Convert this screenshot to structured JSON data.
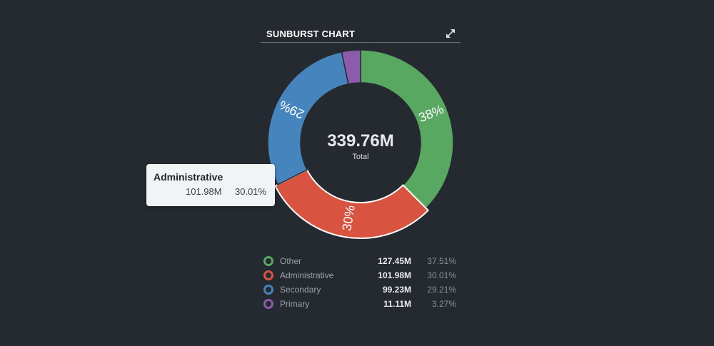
{
  "panel": {
    "title": "SUNBURST CHART",
    "expand_icon": "expand-arrows-icon"
  },
  "chart_data": {
    "type": "pie",
    "title": "SUNBURST CHART",
    "center_value": "339.76M",
    "center_label": "Total",
    "slices": [
      {
        "name": "Other",
        "value_label": "127.45M",
        "value": 127.45,
        "percent": 37.51,
        "percent_label": "37.51%",
        "slice_label": "38%",
        "color": "#58a862"
      },
      {
        "name": "Administrative",
        "value_label": "101.98M",
        "value": 101.98,
        "percent": 30.01,
        "percent_label": "30.01%",
        "slice_label": "30%",
        "color": "#d95440"
      },
      {
        "name": "Secondary",
        "value_label": "99.23M",
        "value": 99.23,
        "percent": 29.21,
        "percent_label": "29.21%",
        "slice_label": "29%",
        "color": "#4684bd"
      },
      {
        "name": "Primary",
        "value_label": "11.11M",
        "value": 11.11,
        "percent": 3.27,
        "percent_label": "3.27%",
        "slice_label": "",
        "color": "#8c5cab"
      }
    ]
  },
  "tooltip": {
    "name": "Administrative",
    "value": "101.98M",
    "percent": "30.01%"
  }
}
